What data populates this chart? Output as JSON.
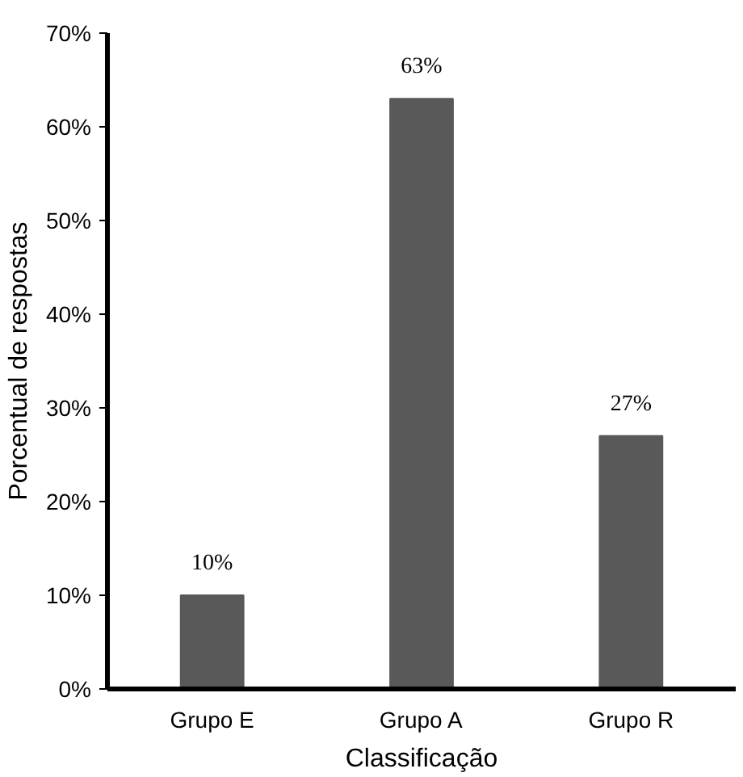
{
  "chart_data": {
    "type": "bar",
    "xlabel": "Classificação",
    "ylabel": "Porcentual de respostas",
    "categories": [
      "Grupo E",
      "Grupo A",
      "Grupo R"
    ],
    "values": [
      10,
      63,
      27
    ],
    "value_labels": [
      "10%",
      "63%",
      "27%"
    ],
    "color": "#595959",
    "ylim": [
      0,
      70
    ],
    "yticks": [
      {
        "value": 0,
        "label": "0%"
      },
      {
        "value": 10,
        "label": "10%"
      },
      {
        "value": 20,
        "label": "20%"
      },
      {
        "value": 30,
        "label": "30%"
      },
      {
        "value": 40,
        "label": "40%"
      },
      {
        "value": 50,
        "label": "50%"
      },
      {
        "value": 60,
        "label": "60%"
      },
      {
        "value": 70,
        "label": "70%"
      }
    ],
    "grid": false
  }
}
